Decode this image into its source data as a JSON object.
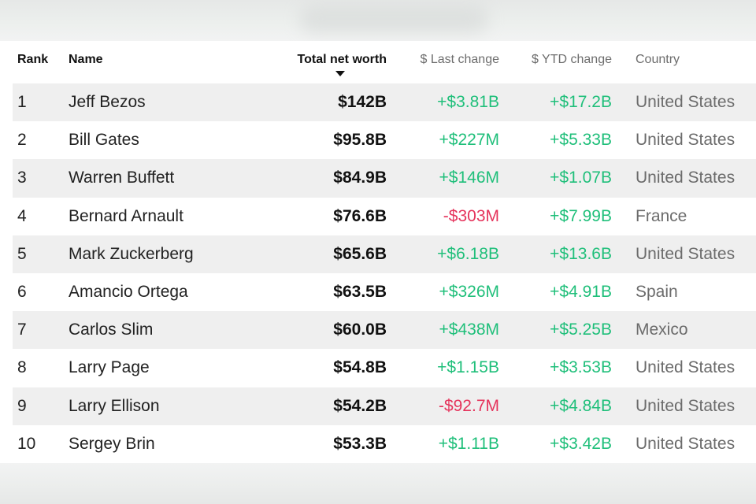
{
  "header": {
    "rank": "Rank",
    "name": "Name",
    "net_worth": "Total net worth",
    "last_change": "$ Last change",
    "ytd_change": "$ YTD change",
    "country": "Country"
  },
  "colors": {
    "positive": "#1fbf7a",
    "negative": "#e5335b",
    "row_alt_bg": "#efefef"
  },
  "rows": [
    {
      "rank": "1",
      "name": "Jeff Bezos",
      "net_worth": "$142B",
      "last_change": "+$3.81B",
      "ytd_change": "+$17.2B",
      "country": "United States"
    },
    {
      "rank": "2",
      "name": "Bill Gates",
      "net_worth": "$95.8B",
      "last_change": "+$227M",
      "ytd_change": "+$5.33B",
      "country": "United States"
    },
    {
      "rank": "3",
      "name": "Warren Buffett",
      "net_worth": "$84.9B",
      "last_change": "+$146M",
      "ytd_change": "+$1.07B",
      "country": "United States"
    },
    {
      "rank": "4",
      "name": "Bernard Arnault",
      "net_worth": "$76.6B",
      "last_change": "-$303M",
      "ytd_change": "+$7.99B",
      "country": "France"
    },
    {
      "rank": "5",
      "name": "Mark Zuckerberg",
      "net_worth": "$65.6B",
      "last_change": "+$6.18B",
      "ytd_change": "+$13.6B",
      "country": "United States"
    },
    {
      "rank": "6",
      "name": "Amancio Ortega",
      "net_worth": "$63.5B",
      "last_change": "+$326M",
      "ytd_change": "+$4.91B",
      "country": "Spain"
    },
    {
      "rank": "7",
      "name": "Carlos Slim",
      "net_worth": "$60.0B",
      "last_change": "+$438M",
      "ytd_change": "+$5.25B",
      "country": "Mexico"
    },
    {
      "rank": "8",
      "name": "Larry Page",
      "net_worth": "$54.8B",
      "last_change": "+$1.15B",
      "ytd_change": "+$3.53B",
      "country": "United States"
    },
    {
      "rank": "9",
      "name": "Larry Ellison",
      "net_worth": "$54.2B",
      "last_change": "-$92.7M",
      "ytd_change": "+$4.84B",
      "country": "United States"
    },
    {
      "rank": "10",
      "name": "Sergey Brin",
      "net_worth": "$53.3B",
      "last_change": "+$1.11B",
      "ytd_change": "+$3.42B",
      "country": "United States"
    }
  ]
}
